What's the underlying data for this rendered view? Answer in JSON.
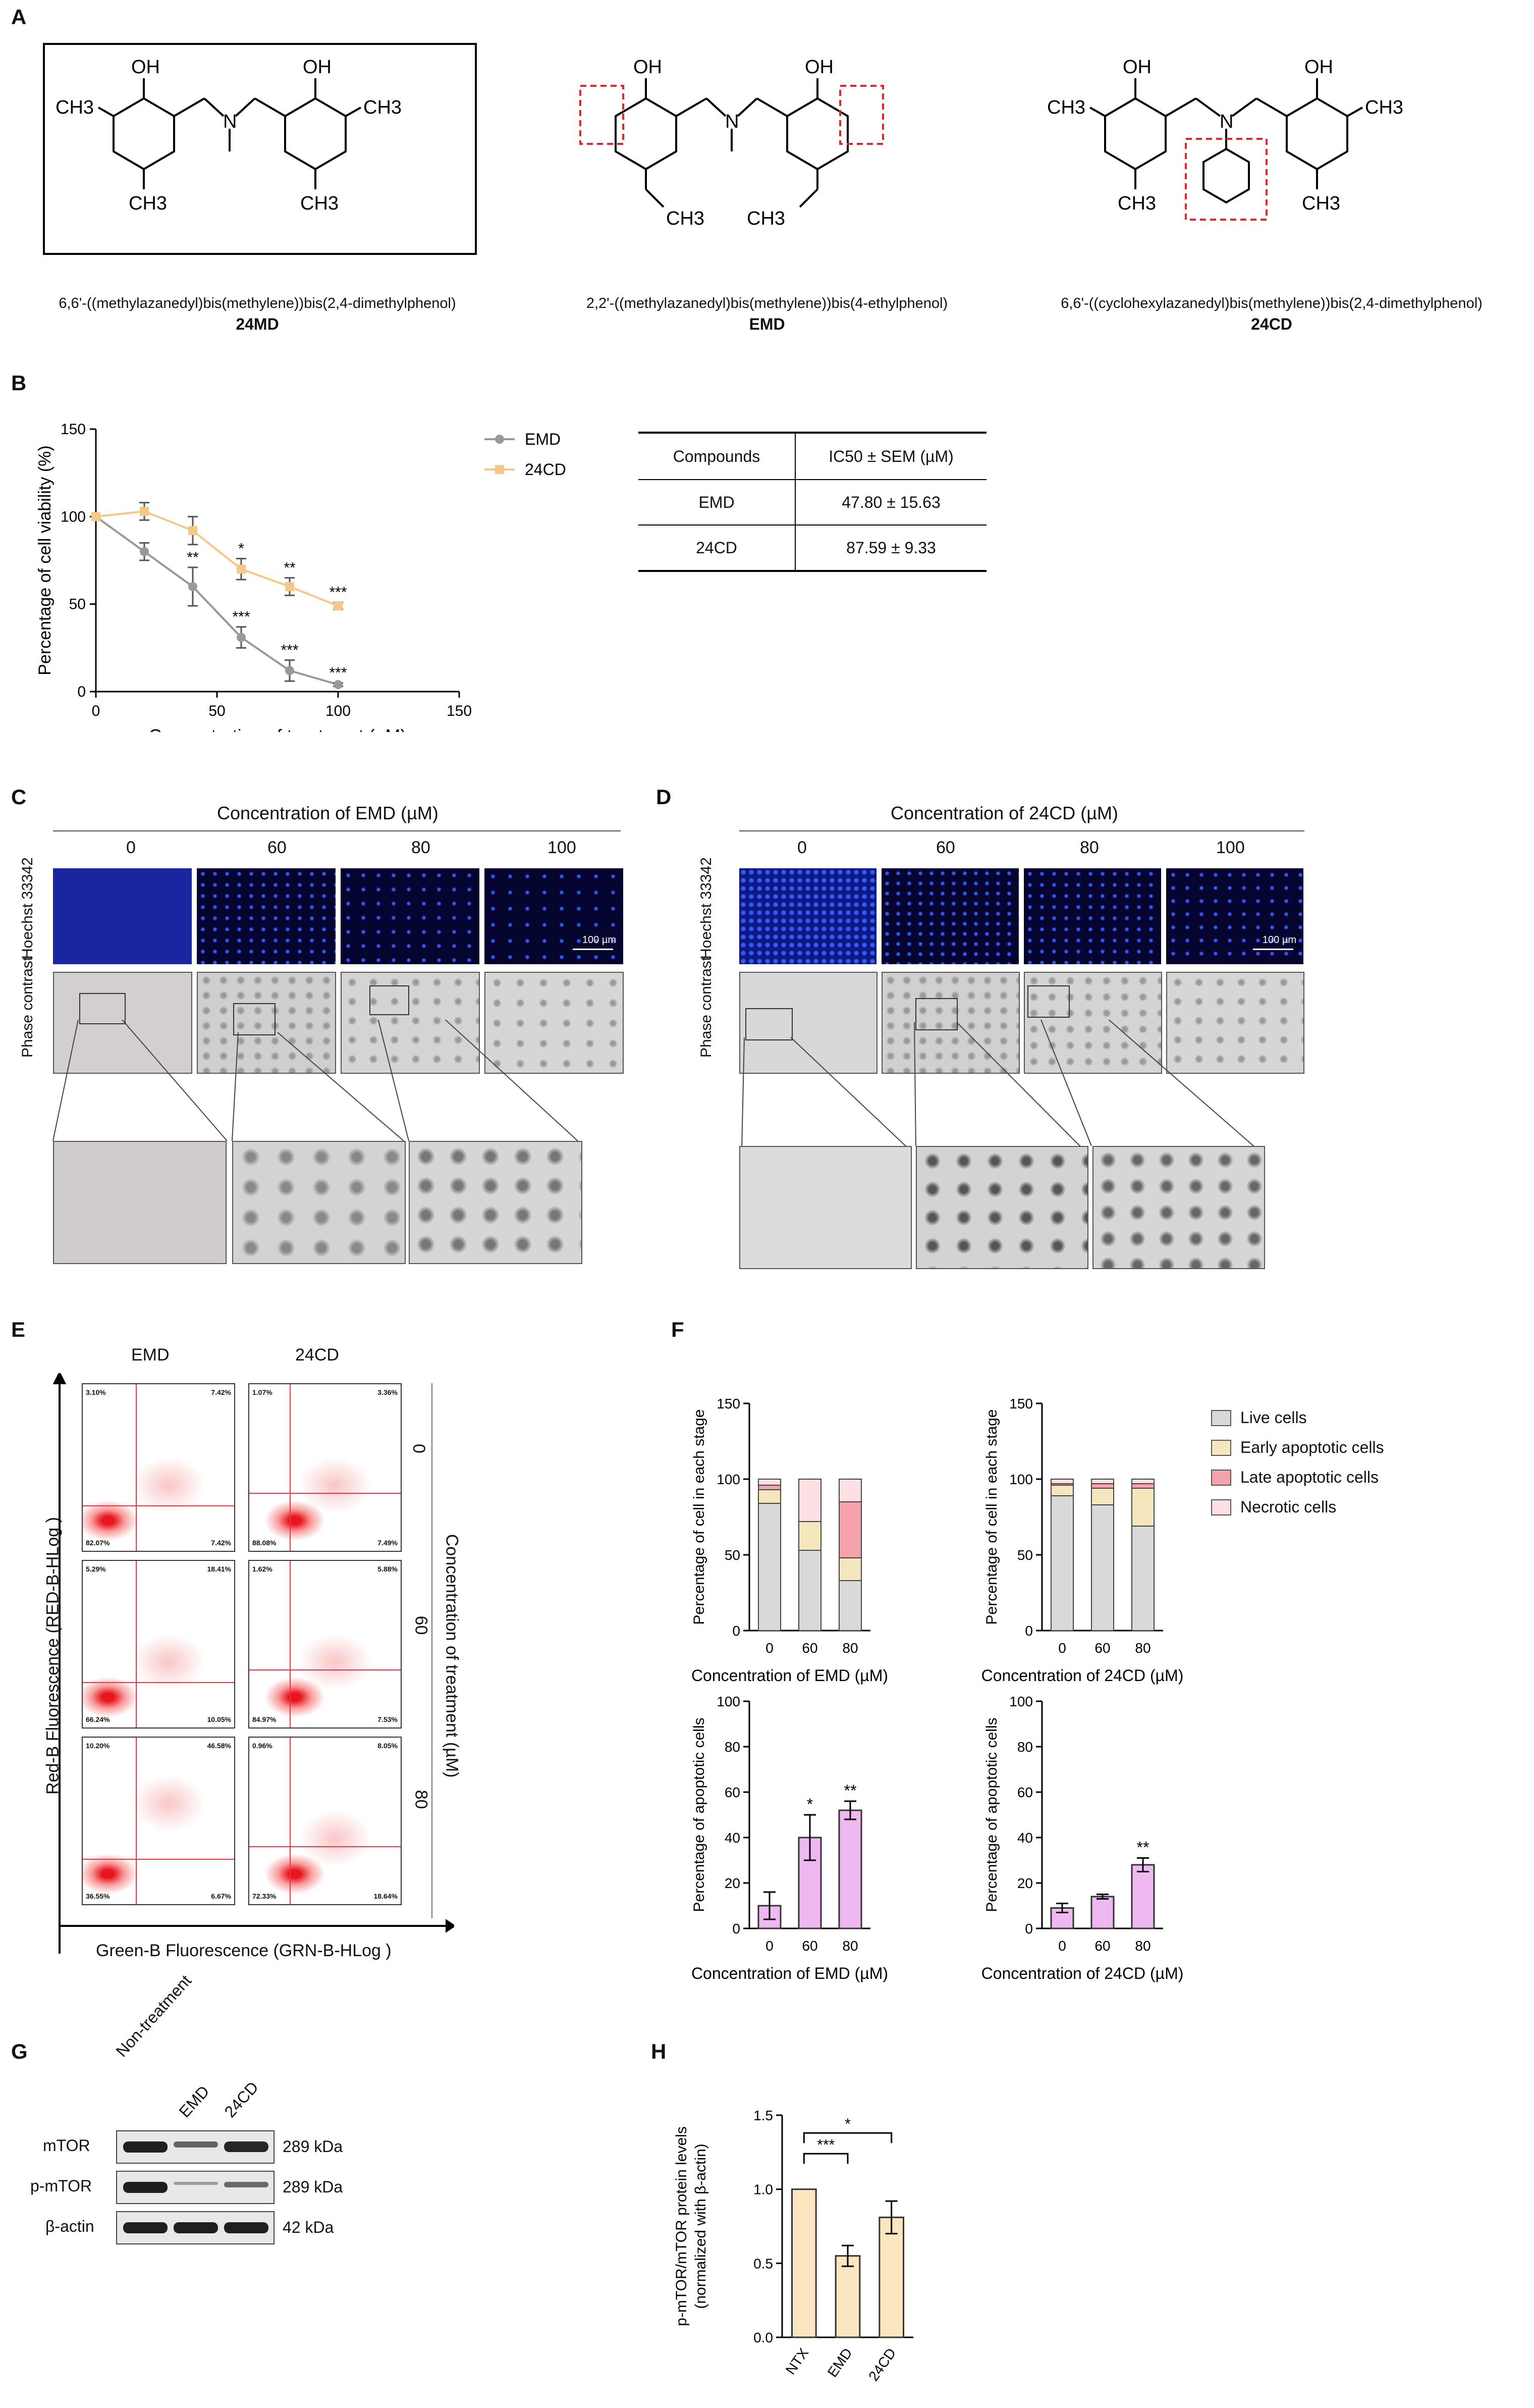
{
  "panel_labels": [
    "A",
    "B",
    "C",
    "D",
    "E",
    "F",
    "G",
    "H"
  ],
  "chem": {
    "c1": {
      "iupac": "6,6'-((methylazanedyl)bis(methylene))bis(2,4-dimethylphenol)",
      "short": "24MD"
    },
    "c2": {
      "iupac": "2,2'-((methylazanedyl)bis(methylene))bis(4-ethylphenol)",
      "short": "EMD"
    },
    "c3": {
      "iupac": "6,6'-((cyclohexylazanedyl)bis(methylene))bis(2,4-dimethylphenol)",
      "short": "24CD"
    },
    "atoms": {
      "oh": "OH",
      "n": "N",
      "me": "CH3"
    }
  },
  "viability_chart": {
    "type": "line",
    "ylabel": "Percentage of cell viability (%)",
    "xlabel": "Concentration of treatment (µM)",
    "xlim": [
      0,
      150
    ],
    "ylim": [
      0,
      150
    ],
    "xticks": [
      0,
      50,
      100,
      150
    ],
    "yticks": [
      0,
      50,
      100,
      150
    ],
    "series": [
      {
        "name": "EMD",
        "color": "#999999",
        "x": [
          0,
          20,
          40,
          60,
          80,
          100
        ],
        "y": [
          100,
          80,
          60,
          31,
          12,
          4
        ],
        "err": [
          0,
          5,
          11,
          6,
          6,
          1
        ],
        "sig": [
          "",
          "",
          "**",
          "***",
          "***",
          "***"
        ]
      },
      {
        "name": "24CD",
        "color": "#f6c887",
        "x": [
          0,
          20,
          40,
          60,
          80,
          100
        ],
        "y": [
          100,
          103,
          92,
          70,
          60,
          49
        ],
        "err": [
          0,
          5,
          8,
          6,
          5,
          2
        ],
        "sig": [
          "",
          "",
          "",
          "*",
          "**",
          "***"
        ]
      }
    ]
  },
  "ic50_table": {
    "headers": [
      "Compounds",
      "IC50 ± SEM (µM)"
    ],
    "rows": [
      [
        "EMD",
        "47.80 ± 15.63"
      ],
      [
        "24CD",
        "87.59 ± 9.33"
      ]
    ]
  },
  "panel_c": {
    "title": "Concentration of EMD (µM)",
    "conc": [
      "0",
      "60",
      "80",
      "100"
    ],
    "row1": "Hoechst 33342",
    "row2": "Phase contrast",
    "scale": "100 µm"
  },
  "panel_d": {
    "title": "Concentration of 24CD (µM)",
    "conc": [
      "0",
      "60",
      "80",
      "100"
    ],
    "row1": "Hoechst 33342",
    "row2": "Phase contrast",
    "scale": "100 µm"
  },
  "panel_e": {
    "col_titles": [
      "EMD",
      "24CD"
    ],
    "row_labels": [
      "0",
      "60",
      "80"
    ],
    "ylabel": "Red-B Fluorescence (RED-B-HLog )",
    "xlabel": "Green-B Fluorescence (GRN-B-HLog )",
    "side": "Concentration of treatment (µM)",
    "quadrants": [
      [
        [
          "3.10%",
          "7.42%",
          "82.07%",
          "7.42%"
        ],
        [
          "1.07%",
          "3.36%",
          "88.08%",
          "7.49%"
        ]
      ],
      [
        [
          "5.29%",
          "18.41%",
          "66.24%",
          "10.05%"
        ],
        [
          "1.62%",
          "5.88%",
          "84.97%",
          "7.53%"
        ]
      ],
      [
        [
          "10.20%",
          "46.58%",
          "36.55%",
          "6.67%"
        ],
        [
          "0.96%",
          "8.05%",
          "72.33%",
          "18.64%"
        ]
      ]
    ]
  },
  "stage_legend": [
    {
      "name": "Live cells",
      "color": "#d9d9d9"
    },
    {
      "name": "Early apoptotic cells",
      "color": "#f5e7bd"
    },
    {
      "name": "Late apoptotic cells",
      "color": "#f4a2ac"
    },
    {
      "name": "Necrotic cells",
      "color": "#fde0e3"
    }
  ],
  "chart_data": [
    {
      "type": "bar",
      "stacked": true,
      "title": "",
      "ylabel": "Percentage of cell in each stage",
      "xlabel": "Concentration of EMD (µM)",
      "categories": [
        "0",
        "60",
        "80"
      ],
      "ylim": [
        0,
        150
      ],
      "series": [
        {
          "name": "Live cells",
          "values": [
            84,
            53,
            33
          ]
        },
        {
          "name": "Early apoptotic cells",
          "values": [
            9,
            19,
            15
          ]
        },
        {
          "name": "Late apoptotic cells",
          "values": [
            3,
            0,
            37
          ]
        },
        {
          "name": "Necrotic cells",
          "values": [
            4,
            28,
            15
          ]
        }
      ]
    },
    {
      "type": "bar",
      "stacked": true,
      "title": "",
      "ylabel": "Percentage of cell in each stage",
      "xlabel": "Concentration of 24CD (µM)",
      "categories": [
        "0",
        "60",
        "80"
      ],
      "ylim": [
        0,
        150
      ],
      "series": [
        {
          "name": "Live cells",
          "values": [
            89,
            83,
            69
          ]
        },
        {
          "name": "Early apoptotic cells",
          "values": [
            7,
            11,
            25
          ]
        },
        {
          "name": "Late apoptotic cells",
          "values": [
            1,
            3,
            3
          ]
        },
        {
          "name": "Necrotic cells",
          "values": [
            3,
            3,
            3
          ]
        }
      ]
    },
    {
      "type": "bar",
      "ylabel": "Percentage of apoptotic cells",
      "xlabel": "Concentration of EMD (µM)",
      "categories": [
        "0",
        "60",
        "80"
      ],
      "values": [
        10,
        40,
        52
      ],
      "err": [
        6,
        10,
        4
      ],
      "sig": [
        "",
        "*",
        "**"
      ],
      "ylim": [
        0,
        100
      ]
    },
    {
      "type": "bar",
      "ylabel": "Percentage of apoptotic cells",
      "xlabel": "Concentration of 24CD (µM)",
      "categories": [
        "0",
        "60",
        "80"
      ],
      "values": [
        9,
        14,
        28
      ],
      "err": [
        2,
        1,
        3
      ],
      "sig": [
        "",
        "",
        "**"
      ],
      "ylim": [
        0,
        100
      ]
    },
    {
      "type": "bar",
      "ylabel": "p-mTOR/mTOR protein levels (normalized with β-actin)",
      "categories": [
        "NTX",
        "EMD",
        "24CD"
      ],
      "values": [
        1.0,
        0.55,
        0.81
      ],
      "err": [
        0,
        0.07,
        0.11
      ],
      "ylim": [
        0,
        1.5
      ],
      "brackets": [
        {
          "from": 0,
          "to": 1,
          "label": "***"
        },
        {
          "from": 0,
          "to": 2,
          "label": "*"
        }
      ]
    }
  ],
  "western": {
    "lanes": [
      "Non-treatment",
      "EMD",
      "24CD"
    ],
    "rows": [
      {
        "label": "mTOR",
        "kda": "289 kDa"
      },
      {
        "label": "p-mTOR",
        "kda": "289 kDa"
      },
      {
        "label": "β-actin",
        "kda": "42 kDa"
      }
    ]
  }
}
